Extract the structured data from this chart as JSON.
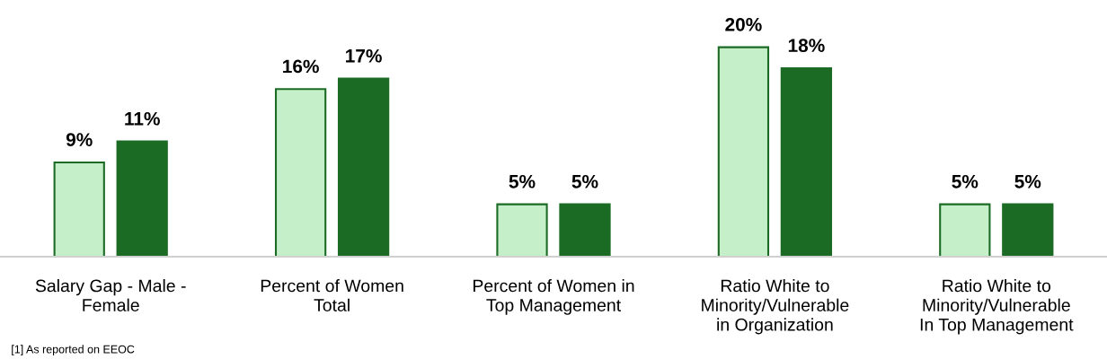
{
  "chart_data": {
    "type": "bar",
    "categories": [
      "Salary Gap - Male -\nFemale",
      "Percent of Women\nTotal",
      "Percent of Women in\nTop Management",
      "Ratio White to\nMinority/Vulnerable\nin Organization",
      "Ratio White to\nMinority/Vulnerable\nIn Top Management"
    ],
    "series": [
      {
        "color": "#c4efc8",
        "values": [
          9,
          16,
          5,
          20,
          5
        ],
        "value_labels": [
          "9%",
          "16%",
          "5%",
          "20%",
          "5%"
        ]
      },
      {
        "color": "#1b6b24",
        "values": [
          11,
          17,
          5,
          18,
          5
        ],
        "value_labels": [
          "11%",
          "17%",
          "5%",
          "18%",
          "5%"
        ]
      }
    ],
    "annotations": [
      "[1] As reported on EEOC"
    ]
  }
}
